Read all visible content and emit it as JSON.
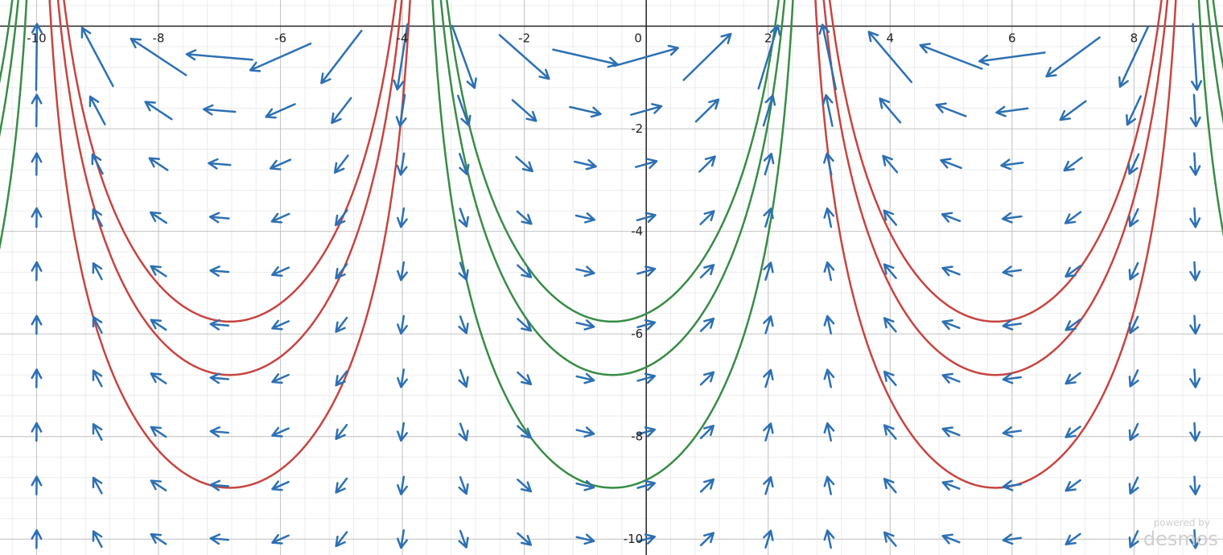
{
  "graph": {
    "xlim": [
      -10.6,
      9.46
    ],
    "ylim": [
      -10.31,
      0.51
    ],
    "xticks": [
      -10,
      -8,
      -6,
      -4,
      -2,
      0,
      2,
      4,
      6,
      8
    ],
    "yticks": [
      -2,
      -4,
      -6,
      -8,
      -10
    ],
    "watermark": {
      "line1": "powered by",
      "line2": "desmos"
    }
  }
}
